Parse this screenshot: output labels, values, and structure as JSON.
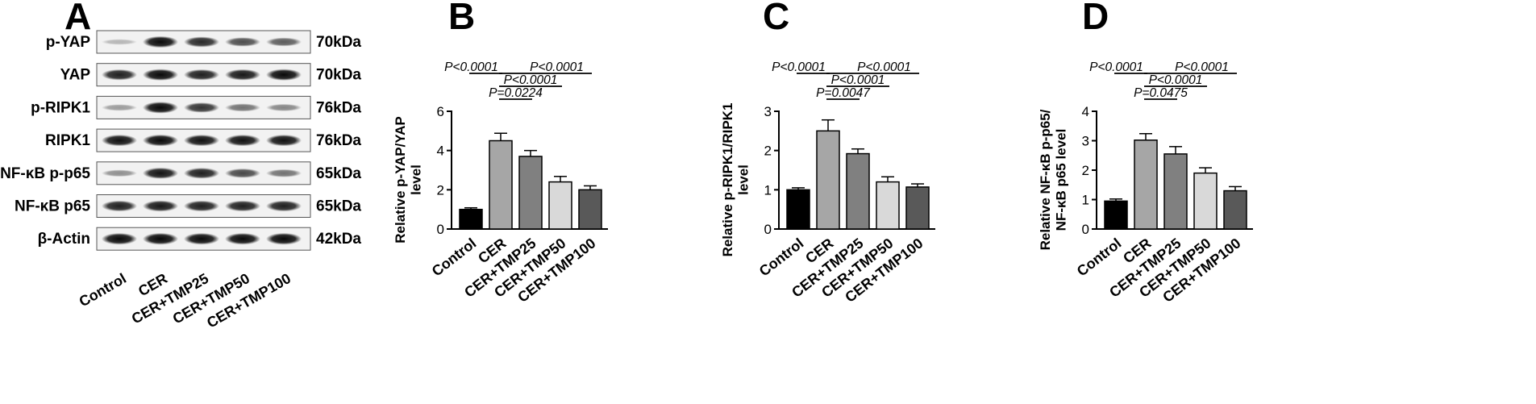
{
  "panel_a": {
    "letter": "A",
    "lanes": [
      "Control",
      "CER",
      "CER+TMP25",
      "CER+TMP50",
      "CER+TMP100"
    ],
    "rows": [
      {
        "protein": "p-YAP",
        "size": "70kDa",
        "intensity": [
          0.12,
          0.95,
          0.8,
          0.62,
          0.55
        ]
      },
      {
        "protein": "YAP",
        "size": "70kDa",
        "intensity": [
          0.85,
          0.95,
          0.85,
          0.88,
          0.95
        ]
      },
      {
        "protein": "p-RIPK1",
        "size": "76kDa",
        "intensity": [
          0.25,
          0.95,
          0.75,
          0.45,
          0.35
        ]
      },
      {
        "protein": "RIPK1",
        "size": "76kDa",
        "intensity": [
          0.92,
          0.95,
          0.92,
          0.92,
          0.92
        ]
      },
      {
        "protein": "NF-κB p-p65",
        "size": "65kDa",
        "intensity": [
          0.3,
          0.9,
          0.85,
          0.65,
          0.45
        ]
      },
      {
        "protein": "NF-κB p65",
        "size": "65kDa",
        "intensity": [
          0.85,
          0.88,
          0.85,
          0.85,
          0.85
        ]
      },
      {
        "protein": "β-Actin",
        "size": "42kDa",
        "intensity": [
          0.95,
          0.97,
          0.95,
          0.95,
          0.97
        ]
      }
    ]
  },
  "chart_data": [
    {
      "type": "bar",
      "panel": "B",
      "ylabel": [
        "Relative p-YAP/YAP",
        "level"
      ],
      "categories": [
        "Control",
        "CER",
        "CER+TMP25",
        "CER+TMP50",
        "CER+TMP100"
      ],
      "values": [
        1.0,
        4.5,
        3.7,
        2.4,
        2.0
      ],
      "errors": [
        0.08,
        0.38,
        0.3,
        0.28,
        0.2
      ],
      "ylim": [
        0,
        6
      ],
      "yticks": [
        0,
        2,
        4,
        6
      ],
      "bar_colors": [
        "#000000",
        "#a6a6a6",
        "#808080",
        "#d9d9d9",
        "#595959"
      ],
      "comparisons": [
        {
          "from": 0,
          "to": 1,
          "label": "P<0.0001"
        },
        {
          "from": 1,
          "to": 4,
          "label": "P<0.0001"
        },
        {
          "from": 1,
          "to": 3,
          "label": "P<0.0001"
        },
        {
          "from": 1,
          "to": 2,
          "label": "P=0.0224"
        }
      ]
    },
    {
      "type": "bar",
      "panel": "C",
      "ylabel": [
        "Relative p-RIPK1/RIPK1",
        "level"
      ],
      "categories": [
        "Control",
        "CER",
        "CER+TMP25",
        "CER+TMP50",
        "CER+TMP100"
      ],
      "values": [
        1.0,
        2.5,
        1.92,
        1.2,
        1.07
      ],
      "errors": [
        0.05,
        0.28,
        0.12,
        0.13,
        0.08
      ],
      "ylim": [
        0,
        3
      ],
      "yticks": [
        0,
        1,
        2,
        3
      ],
      "bar_colors": [
        "#000000",
        "#a6a6a6",
        "#808080",
        "#d9d9d9",
        "#595959"
      ],
      "comparisons": [
        {
          "from": 0,
          "to": 1,
          "label": "P<0.0001"
        },
        {
          "from": 1,
          "to": 4,
          "label": "P<0.0001"
        },
        {
          "from": 1,
          "to": 3,
          "label": "P<0.0001"
        },
        {
          "from": 1,
          "to": 2,
          "label": "P=0.0047"
        }
      ]
    },
    {
      "type": "bar",
      "panel": "D",
      "ylabel": [
        "Relative NF-κB p-p65/",
        "NF-κB p65 level"
      ],
      "categories": [
        "Control",
        "CER",
        "CER+TMP25",
        "CER+TMP50",
        "CER+TMP100"
      ],
      "values": [
        0.95,
        3.02,
        2.55,
        1.9,
        1.3
      ],
      "errors": [
        0.07,
        0.22,
        0.25,
        0.18,
        0.14
      ],
      "ylim": [
        0,
        4
      ],
      "yticks": [
        0,
        1,
        2,
        3,
        4
      ],
      "bar_colors": [
        "#000000",
        "#a6a6a6",
        "#808080",
        "#d9d9d9",
        "#595959"
      ],
      "comparisons": [
        {
          "from": 0,
          "to": 1,
          "label": "P<0.0001"
        },
        {
          "from": 1,
          "to": 4,
          "label": "P<0.0001"
        },
        {
          "from": 1,
          "to": 3,
          "label": "P<0.0001"
        },
        {
          "from": 1,
          "to": 2,
          "label": "P=0.0475"
        }
      ]
    }
  ]
}
